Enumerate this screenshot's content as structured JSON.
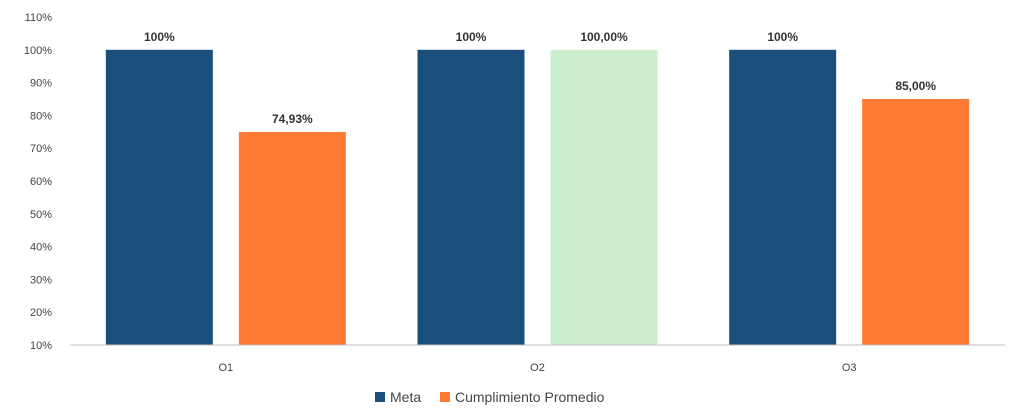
{
  "chart_data": {
    "type": "bar",
    "title": "",
    "xlabel": "",
    "ylabel": "",
    "ylim": [
      10,
      110
    ],
    "y_ticks": [
      "10%",
      "20%",
      "30%",
      "40%",
      "50%",
      "60%",
      "70%",
      "80%",
      "90%",
      "100%",
      "110%"
    ],
    "grid": false,
    "legend_position": "bottom",
    "categories": [
      "O1",
      "O2",
      "O3"
    ],
    "category_labels": [
      "O1",
      "O2",
      "O3"
    ],
    "series": [
      {
        "name": "Meta",
        "color": "#1b4f7b",
        "values": [
          100,
          100,
          100
        ],
        "labels": [
          "100%",
          "100%",
          "100%"
        ]
      },
      {
        "name": "Cumplimiento Promedio",
        "color": "#ff7a33",
        "values": [
          74.93,
          100,
          85
        ],
        "labels": [
          "74,93%",
          "100,00%",
          "85,00%"
        ],
        "bar_colors": [
          "#ff7a33",
          "#cdeecb",
          "#ff7a33"
        ]
      }
    ]
  }
}
